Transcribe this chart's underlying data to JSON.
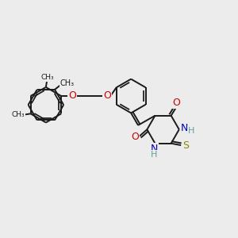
{
  "background_color": "#ececec",
  "line_color": "#1a1a1a",
  "oxygen_color": "#cc0000",
  "nitrogen_color": "#0000bb",
  "sulfur_color": "#888800",
  "hydrogen_color": "#5f9ea0",
  "figsize": [
    3.0,
    3.0
  ],
  "dpi": 100,
  "xlim": [
    0,
    10
  ],
  "ylim": [
    0,
    10
  ]
}
